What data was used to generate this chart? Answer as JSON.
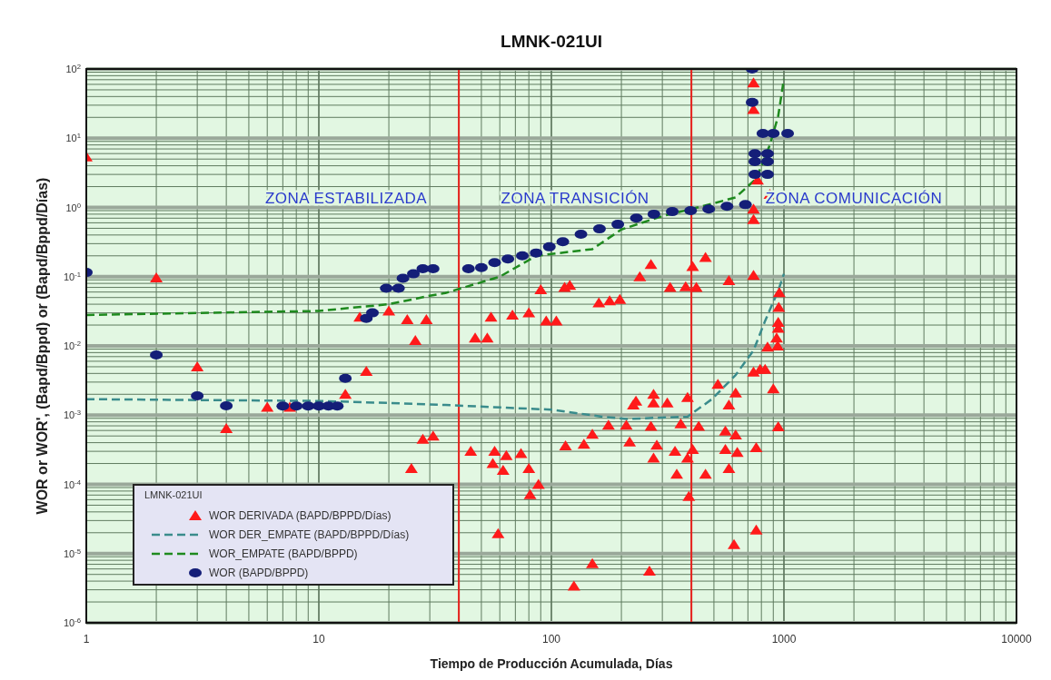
{
  "chart_data": {
    "type": "scatter",
    "title": "LMNK-021UI",
    "xlabel": "Tiempo de Producción Acumulada, Días",
    "ylabel": "WOR or WOR', (Bapd/Bppd) or (Bapd/Bppd/Días)",
    "legend_title": "LMNK-021UI",
    "log": "xy",
    "grid": true,
    "legend": "bottom left",
    "xlim": [
      1,
      10000
    ],
    "xticks": [
      1,
      10,
      100,
      1000,
      10000
    ],
    "ylim": [
      1e-06,
      100
    ],
    "yticks": [
      {
        "value": 1e-06,
        "label": "10$^{-6}$"
      },
      {
        "value": 1e-05,
        "label": "10$^{-5}$"
      },
      {
        "value": 0.0001,
        "label": "10$^{-4}$"
      },
      {
        "value": 0.001,
        "label": "10$^{-3}$"
      },
      {
        "value": 0.01,
        "label": "10$^{-2}$"
      },
      {
        "value": 0.1,
        "label": "10$^{-1}$"
      },
      {
        "value": 1,
        "label": "10$^{0}$"
      },
      {
        "value": 10,
        "label": "10$^{1}$"
      },
      {
        "value": 100,
        "label": "10$^{2}$"
      }
    ],
    "ref_lines": [
      {
        "axis": "x",
        "value": 40,
        "color": "#e8201c"
      },
      {
        "axis": "x",
        "value": 400,
        "color": "#e8201c"
      }
    ],
    "annotations": [
      "ZONA ESTABILIZADA",
      "ZONA TRANSICIÓN",
      "ZONA COMUNICACIÓN"
    ],
    "series": [
      {
        "name": "WOR DERIVADA (BAPD/BPPD/Días)",
        "marker": "triangle",
        "color": "#ff1a1a",
        "x": [
          1,
          2,
          3,
          4,
          6,
          7.5,
          13,
          16,
          15,
          20,
          24,
          26,
          29,
          25,
          28,
          31,
          47,
          53,
          55,
          68,
          80,
          90,
          95,
          105,
          114,
          120,
          160,
          178,
          197,
          240,
          268,
          324,
          378,
          420,
          405,
          460,
          580,
          740,
          740,
          740,
          870,
          740,
          740,
          770,
          955,
          950,
          945,
          940,
          930,
          945,
          850,
          790,
          900,
          945,
          45,
          57,
          64,
          56,
          62,
          74,
          80,
          88,
          81,
          59,
          125,
          150,
          264,
          115,
          138,
          150,
          176,
          210,
          217,
          225,
          231,
          275,
          275,
          315,
          268,
          284,
          275,
          340,
          346,
          385,
          390,
          385,
          405,
          460,
          430,
          360,
          520,
          580,
          620,
          560,
          620,
          560,
          630,
          580,
          760,
          610,
          760,
          740,
          830
        ],
        "values": [
          5.4,
          0.096,
          0.005,
          0.00064,
          0.0013,
          0.0013,
          0.002,
          0.0043,
          0.026,
          0.032,
          0.024,
          0.012,
          0.024,
          0.00017,
          0.00045,
          0.0005,
          0.013,
          0.013,
          0.026,
          0.028,
          0.03,
          0.065,
          0.023,
          0.023,
          0.07,
          0.075,
          0.042,
          0.045,
          0.047,
          0.1,
          0.15,
          0.07,
          0.072,
          0.07,
          0.14,
          0.19,
          0.088,
          0.105,
          0.95,
          0.67,
          1.55,
          63,
          26,
          2.5,
          0.059,
          0.036,
          0.018,
          0.01,
          0.013,
          0.022,
          0.0096,
          0.0046,
          0.0024,
          0.00068,
          0.0003,
          0.0003,
          0.00026,
          0.0002,
          0.00016,
          0.00028,
          0.00017,
          0.0001,
          7.1e-05,
          1.94e-05,
          3.4e-06,
          7.2e-06,
          5.6e-06,
          0.00036,
          0.00038,
          0.00053,
          0.00072,
          0.00072,
          0.00041,
          0.0014,
          0.0016,
          0.002,
          0.0015,
          0.0015,
          0.00069,
          0.00037,
          0.00024,
          0.0003,
          0.00014,
          0.0018,
          6.7e-05,
          0.00024,
          0.00032,
          0.00014,
          0.00069,
          0.00075,
          0.0028,
          0.0014,
          0.0021,
          0.00059,
          0.00052,
          0.00032,
          0.00029,
          0.00017,
          0.00034,
          1.35e-05,
          2.2e-05,
          0.0042,
          0.0046
        ]
      },
      {
        "name": "WOR DER_EMPATE (BAPD/BPPD/Días)",
        "type": "line",
        "line_style": "dashed",
        "color": "#3a8c8c",
        "x": [
          1,
          10,
          20,
          35,
          100,
          165,
          210,
          385,
          490,
          620,
          740,
          830,
          945,
          1000
        ],
        "values": [
          0.0017,
          0.0016,
          0.0015,
          0.0014,
          0.0012,
          0.00095,
          0.00088,
          0.00095,
          0.0017,
          0.0038,
          0.0086,
          0.023,
          0.063,
          0.11
        ]
      },
      {
        "name": "WOR_EMPATE (BAPD/BPPD)",
        "type": "line",
        "line_style": "dashed",
        "color": "#1e8a1e",
        "x": [
          1,
          10,
          20,
          30,
          35,
          60,
          86,
          150,
          200,
          300,
          400,
          500,
          620,
          760,
          870,
          945,
          1000
        ],
        "values": [
          0.028,
          0.032,
          0.04,
          0.053,
          0.058,
          0.1,
          0.2,
          0.25,
          0.48,
          0.75,
          0.95,
          1.15,
          1.4,
          2.6,
          8,
          21,
          72
        ]
      },
      {
        "name": "WOR (BAPD/BPPD)",
        "marker": "circle",
        "color": "#141e78",
        "x": [
          1,
          2,
          3,
          4,
          7,
          8,
          9,
          10,
          11,
          12,
          13,
          16,
          17,
          19.5,
          22,
          23,
          25.5,
          28,
          31,
          44,
          50,
          57,
          65,
          75,
          86,
          98,
          112,
          134,
          161,
          193,
          232,
          276,
          331,
          397,
          475,
          569,
          683,
          730,
          730,
          812,
          900,
          1037,
          750,
          850,
          750,
          850,
          750,
          850
        ],
        "values": [
          0.115,
          0.0074,
          0.0019,
          0.00136,
          0.00135,
          0.00135,
          0.00135,
          0.00135,
          0.00135,
          0.00135,
          0.0034,
          0.025,
          0.03,
          0.068,
          0.068,
          0.095,
          0.11,
          0.13,
          0.13,
          0.13,
          0.135,
          0.16,
          0.18,
          0.2,
          0.22,
          0.27,
          0.32,
          0.41,
          0.49,
          0.57,
          0.7,
          0.8,
          0.87,
          0.9,
          0.95,
          1.04,
          1.1,
          100,
          33,
          11.7,
          11.7,
          11.7,
          6,
          6,
          4.6,
          4.6,
          3,
          3
        ]
      }
    ]
  }
}
